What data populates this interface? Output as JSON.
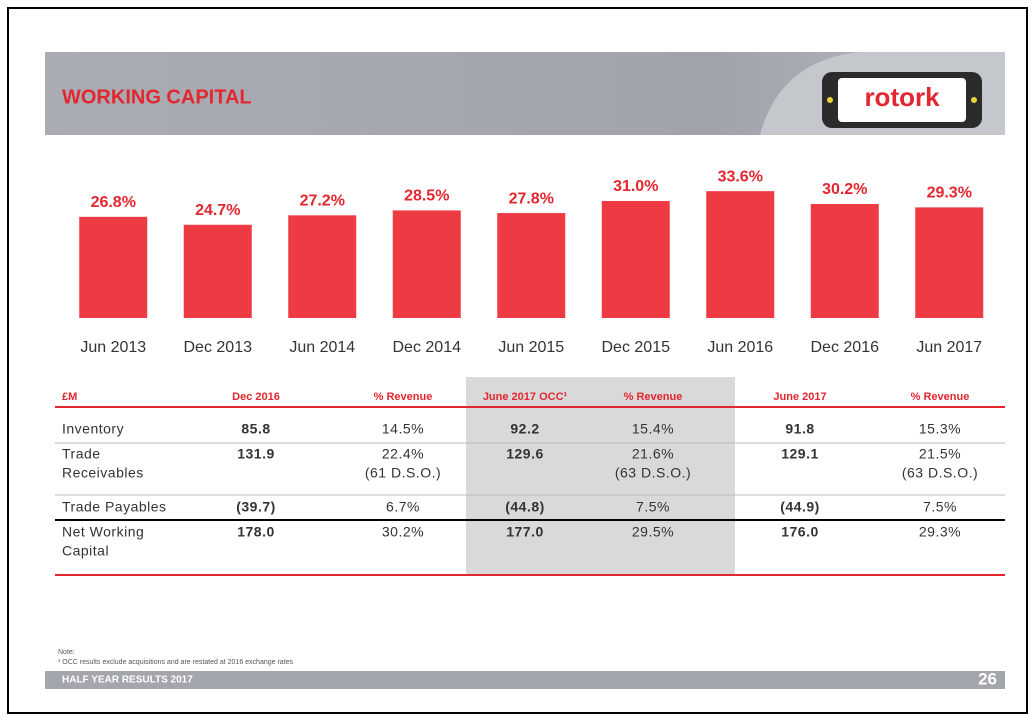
{
  "header": {
    "title": "WORKING CAPITAL",
    "logo": "rotork"
  },
  "chart_data": {
    "type": "bar",
    "categories": [
      "Jun 2013",
      "Dec 2013",
      "Jun 2014",
      "Dec 2014",
      "Jun 2015",
      "Dec 2015",
      "Jun 2016",
      "Dec 2016",
      "Jun 2017"
    ],
    "values": [
      26.8,
      24.7,
      27.2,
      28.5,
      27.8,
      31.0,
      33.6,
      30.2,
      29.3
    ],
    "value_labels": [
      "26.8%",
      "24.7%",
      "27.2%",
      "28.5%",
      "27.8%",
      "31.0%",
      "33.6%",
      "30.2%",
      "29.3%"
    ],
    "color": "#ee3a43",
    "ylim": [
      0,
      40
    ]
  },
  "table": {
    "header": [
      "£M",
      "Dec 2016",
      "% Revenue",
      "June 2017 OCC¹",
      "% Revenue",
      "June 2017",
      "% Revenue"
    ],
    "rows": [
      [
        [
          "Inventory"
        ],
        [
          "85.8"
        ],
        [
          "14.5%"
        ],
        [
          "92.2"
        ],
        [
          "15.4%"
        ],
        [
          "91.8"
        ],
        [
          "15.3%"
        ]
      ],
      [
        [
          "Trade",
          "Receivables"
        ],
        [
          "131.9"
        ],
        [
          "22.4%",
          "(61 D.S.O.)"
        ],
        [
          "129.6"
        ],
        [
          "21.6%",
          "(63 D.S.O.)"
        ],
        [
          "129.1"
        ],
        [
          "21.5%",
          "(63 D.S.O.)"
        ]
      ],
      [
        [
          "Trade Payables"
        ],
        [
          "(39.7)"
        ],
        [
          "6.7%"
        ],
        [
          "(44.8)"
        ],
        [
          "7.5%"
        ],
        [
          "(44.9)"
        ],
        [
          "7.5%"
        ]
      ],
      [
        [
          "Net Working",
          "Capital"
        ],
        [
          "178.0"
        ],
        [
          "30.2%"
        ],
        [
          "177.0"
        ],
        [
          "29.5%"
        ],
        [
          "176.0"
        ],
        [
          "29.3%"
        ]
      ]
    ]
  },
  "note": {
    "title": "Note:",
    "text": "¹ OCC results  exclude  acquisitions  and  are  restated  at  2016  exchange  rates"
  },
  "footer": {
    "left": "HALF YEAR RESULTS 2017",
    "page": "26"
  }
}
